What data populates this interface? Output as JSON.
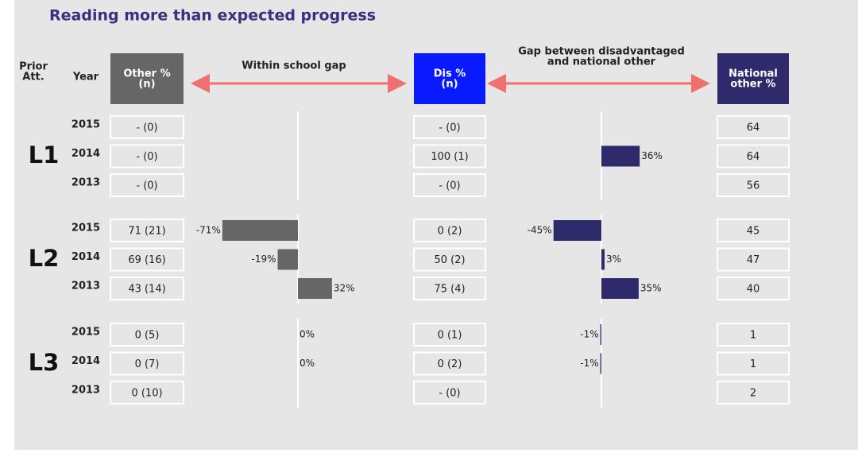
{
  "title": "Reading more than expected progress",
  "headers": {
    "prior": [
      "Prior",
      "Att."
    ],
    "year": "Year",
    "other": [
      "Other %",
      "(n)"
    ],
    "school_gap": "Within school gap",
    "dis": [
      "Dis %",
      "(n)"
    ],
    "national_gap": [
      "Gap between disadvantaged",
      "and national other"
    ],
    "national": [
      "National",
      "other %"
    ]
  },
  "groups": [
    {
      "label": "L1",
      "rows": [
        {
          "year": "2015",
          "other": "- (0)",
          "dis": "- (0)",
          "national": 64
        },
        {
          "year": "2014",
          "other": "- (0)",
          "dis": "100 (1)",
          "national_gap": {
            "value": 36,
            "label": "36%"
          },
          "national": 64
        },
        {
          "year": "2013",
          "other": "- (0)",
          "dis": "- (0)",
          "national": 56
        }
      ]
    },
    {
      "label": "L2",
      "rows": [
        {
          "year": "2015",
          "other": "71 (21)",
          "school_gap": {
            "value": -71,
            "label": "-71%"
          },
          "dis": "0 (2)",
          "national_gap": {
            "value": -45,
            "label": "-45%"
          },
          "national": 45
        },
        {
          "year": "2014",
          "other": "69 (16)",
          "school_gap": {
            "value": -19,
            "label": "-19%"
          },
          "dis": "50 (2)",
          "national_gap": {
            "value": 3,
            "label": "3%"
          },
          "national": 47
        },
        {
          "year": "2013",
          "other": "43 (14)",
          "school_gap": {
            "value": 32,
            "label": "32%"
          },
          "dis": "75 (4)",
          "national_gap": {
            "value": 35,
            "label": "35%"
          },
          "national": 40
        }
      ]
    },
    {
      "label": "L3",
      "rows": [
        {
          "year": "2015",
          "other": "0 (5)",
          "school_gap": {
            "value": 0,
            "label": "0%"
          },
          "dis": "0 (1)",
          "national_gap": {
            "value": -1,
            "label": "-1%"
          },
          "national": 1
        },
        {
          "year": "2014",
          "other": "0 (7)",
          "school_gap": {
            "value": 0,
            "label": "0%"
          },
          "dis": "0 (2)",
          "national_gap": {
            "value": -1,
            "label": "-1%"
          },
          "national": 1
        },
        {
          "year": "2013",
          "other": "0 (10)",
          "dis": "- (0)",
          "national": 2
        }
      ]
    }
  ]
}
